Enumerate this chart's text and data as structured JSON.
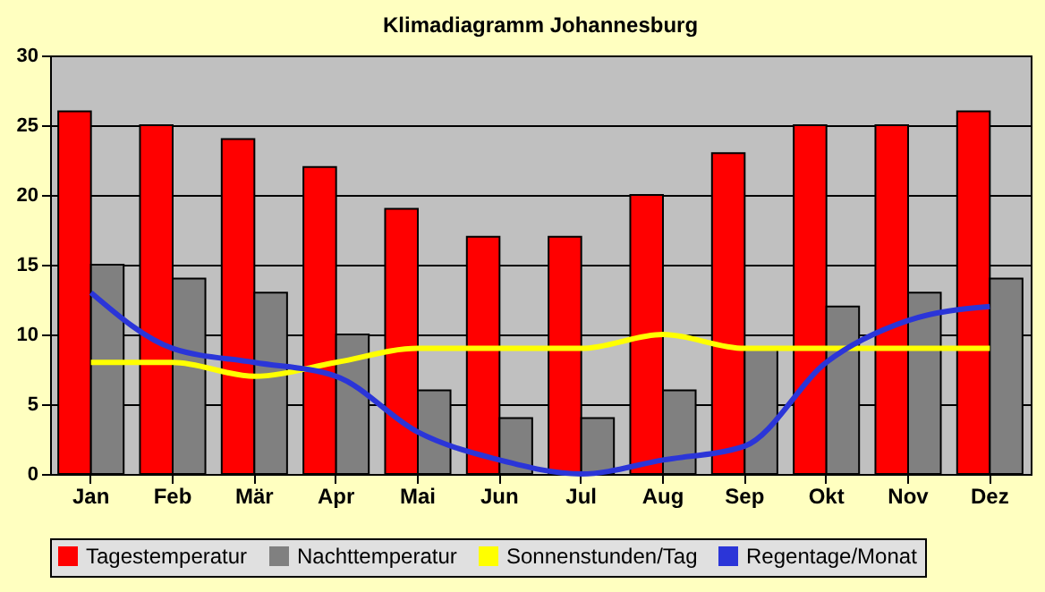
{
  "chart_data": {
    "type": "bar",
    "title": "Klimadiagramm Johannesburg",
    "categories": [
      "Jan",
      "Feb",
      "Mär",
      "Apr",
      "Mai",
      "Jun",
      "Jul",
      "Aug",
      "Sep",
      "Okt",
      "Nov",
      "Dez"
    ],
    "series": [
      {
        "name": "Tagestemperatur",
        "color": "#ff0000",
        "values": [
          26,
          25,
          24,
          22,
          19,
          17,
          17,
          20,
          23,
          25,
          25,
          26
        ]
      },
      {
        "name": "Nachttemperatur",
        "color": "#808080",
        "values": [
          15,
          14,
          13,
          10,
          6,
          4,
          4,
          6,
          9,
          12,
          13,
          14
        ]
      },
      {
        "name": "Sonnenstunden/Tag",
        "type": "line",
        "color": "#ffff00",
        "values": [
          8,
          8,
          7,
          8,
          9,
          9,
          9,
          10,
          9,
          9,
          9,
          9
        ]
      },
      {
        "name": "Regentage/Monat",
        "type": "line",
        "color": "#2b35d8",
        "values": [
          13,
          9,
          8,
          7,
          3,
          1,
          0,
          1,
          2,
          8,
          11,
          12
        ]
      }
    ],
    "ylim": [
      0,
      30
    ],
    "yticks": [
      0,
      5,
      10,
      15,
      20,
      25,
      30
    ],
    "grid": "y",
    "legend": "bottom"
  }
}
